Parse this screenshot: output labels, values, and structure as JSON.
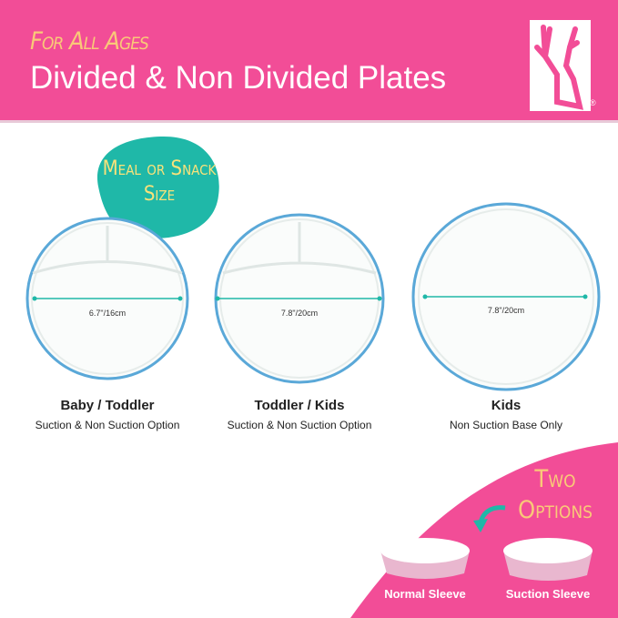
{
  "header": {
    "tagline": "For All Ages",
    "title": "Divided & Non Divided Plates",
    "logo": "deer-logo",
    "registered": "®"
  },
  "badge": {
    "text": "Meal or Snack Size"
  },
  "plates": [
    {
      "name": "Baby / Toddler",
      "subtitle": "Suction & Non Suction Option",
      "diameter": "6.7\"/16cm",
      "divided": true
    },
    {
      "name": "Toddler / Kids",
      "subtitle": "Suction & Non Suction Option",
      "diameter": "7.8\"/20cm",
      "divided": true
    },
    {
      "name": "Kids",
      "subtitle": "Non Suction Base Only",
      "diameter": "7.8\"/20cm",
      "divided": false
    }
  ],
  "options": {
    "heading": "Two Options",
    "items": [
      "Normal Sleeve",
      "Suction Sleeve"
    ]
  },
  "colors": {
    "brand_pink": "#f24d97",
    "accent_teal": "#1fb8a8",
    "accent_yellow": "#f9c978",
    "rim_blue": "#5aa8d8"
  }
}
